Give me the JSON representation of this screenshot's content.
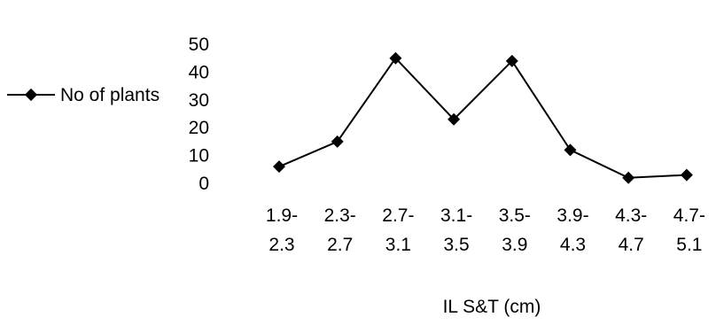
{
  "chart_data": {
    "type": "line",
    "categories": [
      [
        "1.9-",
        "2.3"
      ],
      [
        "2.3-",
        "2.7"
      ],
      [
        "2.7-",
        "3.1"
      ],
      [
        "3.1-",
        "3.5"
      ],
      [
        "3.5-",
        "3.9"
      ],
      [
        "3.9-",
        "4.3"
      ],
      [
        "4.3-",
        "4.7"
      ],
      [
        "4.7-",
        "5.1"
      ]
    ],
    "series": [
      {
        "name": "No of plants",
        "values": [
          6,
          15,
          45,
          23,
          44,
          12,
          2,
          3
        ]
      }
    ],
    "xlabel": "IL S&T (cm)",
    "ylabel": "",
    "ylim": [
      0,
      50
    ],
    "yticks": [
      "0",
      "10",
      "20",
      "30",
      "40",
      "50"
    ],
    "grid": false,
    "legend_position": "left",
    "line_color": "#000000",
    "marker": "diamond"
  }
}
